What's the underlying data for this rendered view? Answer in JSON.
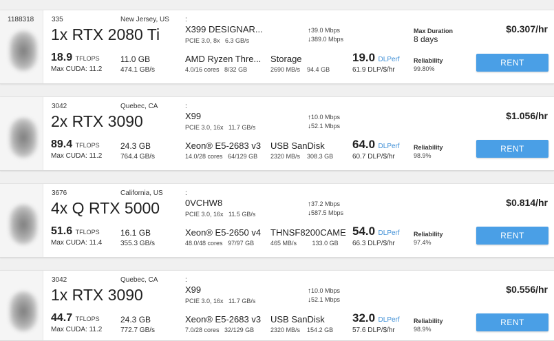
{
  "offers": [
    {
      "machine_id": "1188318",
      "host_id": "335",
      "location": "New Jersey, US",
      "gpu_name": "1x RTX 2080 Ti",
      "tflops": "18.9",
      "tflops_unit": "TFLOPS",
      "max_cuda_label": "Max CUDA:",
      "max_cuda": "11.2",
      "vram": "11.0 GB",
      "vram_bw": "474.1 GB/s",
      "colon": ":",
      "motherboard": "X399 DESIGNAR...",
      "pcie": "PCIE 3.0, 8x",
      "pcie_bw": "6.3 GB/s",
      "cpu": "AMD Ryzen Thre...",
      "cores": "4.0/16 cores",
      "ram": "8/32 GB",
      "net_up": "39.0 Mbps",
      "net_down": "389.0 Mbps",
      "storage_name": "Storage",
      "storage_speed": "2690 MB/s",
      "storage_size": "94.4 GB",
      "dlperf": "19.0",
      "dlperf_label": "DLPerf",
      "dlp_per_dollar": "61.9 DLP/$/hr",
      "max_duration_label": "Max Duration",
      "max_duration": "8 days",
      "reliability_label": "Reliability",
      "reliability": "99.80%",
      "price": "$0.307/hr",
      "rent_label": "RENT"
    },
    {
      "host_id": "3042",
      "location": "Quebec, CA",
      "gpu_name": "2x RTX 3090",
      "tflops": "89.4",
      "tflops_unit": "TFLOPS",
      "max_cuda_label": "Max CUDA:",
      "max_cuda": "11.2",
      "vram": "24.3 GB",
      "vram_bw": "764.4 GB/s",
      "colon": ":",
      "motherboard": "X99",
      "pcie": "PCIE 3.0, 16x",
      "pcie_bw": "11.7 GB/s",
      "cpu": "Xeon® E5-2683 v3",
      "cores": "14.0/28 cores",
      "ram": "64/129 GB",
      "net_up": "10.0 Mbps",
      "net_down": "52.1 Mbps",
      "storage_name": "USB SanDisk",
      "storage_speed": "2320 MB/s",
      "storage_size": "308.3 GB",
      "dlperf": "64.0",
      "dlperf_label": "DLPerf",
      "dlp_per_dollar": "60.7 DLP/$/hr",
      "reliability_label": "Reliability",
      "reliability": "98.9%",
      "price": "$1.056/hr",
      "rent_label": "RENT"
    },
    {
      "host_id": "3676",
      "location": "California, US",
      "gpu_name": "4x Q RTX 5000",
      "tflops": "51.6",
      "tflops_unit": "TFLOPS",
      "max_cuda_label": "Max CUDA:",
      "max_cuda": "11.4",
      "vram": "16.1 GB",
      "vram_bw": "355.3 GB/s",
      "colon": ":",
      "motherboard": "0VCHW8",
      "pcie": "PCIE 3.0, 16x",
      "pcie_bw": "11.5 GB/s",
      "cpu": "Xeon® E5-2650 v4",
      "cores": "48.0/48 cores",
      "ram": "97/97 GB",
      "net_up": "37.2 Mbps",
      "net_down": "587.5 Mbps",
      "storage_name": "THNSF8200CAME",
      "storage_speed": "465 MB/s",
      "storage_size": "133.0 GB",
      "dlperf": "54.0",
      "dlperf_label": "DLPerf",
      "dlp_per_dollar": "66.3 DLP/$/hr",
      "reliability_label": "Reliability",
      "reliability": "97.4%",
      "price": "$0.814/hr",
      "rent_label": "RENT"
    },
    {
      "host_id": "3042",
      "location": "Quebec, CA",
      "gpu_name": "1x RTX 3090",
      "tflops": "44.7",
      "tflops_unit": "TFLOPS",
      "max_cuda_label": "Max CUDA:",
      "max_cuda": "11.2",
      "vram": "24.3 GB",
      "vram_bw": "772.7 GB/s",
      "colon": ":",
      "motherboard": "X99",
      "pcie": "PCIE 3.0, 16x",
      "pcie_bw": "11.7 GB/s",
      "cpu": "Xeon® E5-2683 v3",
      "cores": "7.0/28 cores",
      "ram": "32/129 GB",
      "net_up": "10.0 Mbps",
      "net_down": "52.1 Mbps",
      "storage_name": "USB SanDisk",
      "storage_speed": "2320 MB/s",
      "storage_size": "154.2 GB",
      "dlperf": "32.0",
      "dlperf_label": "DLPerf",
      "dlp_per_dollar": "57.6 DLP/$/hr",
      "reliability_label": "Reliability",
      "reliability": "98.9%",
      "price": "$0.556/hr",
      "rent_label": "RENT"
    }
  ]
}
